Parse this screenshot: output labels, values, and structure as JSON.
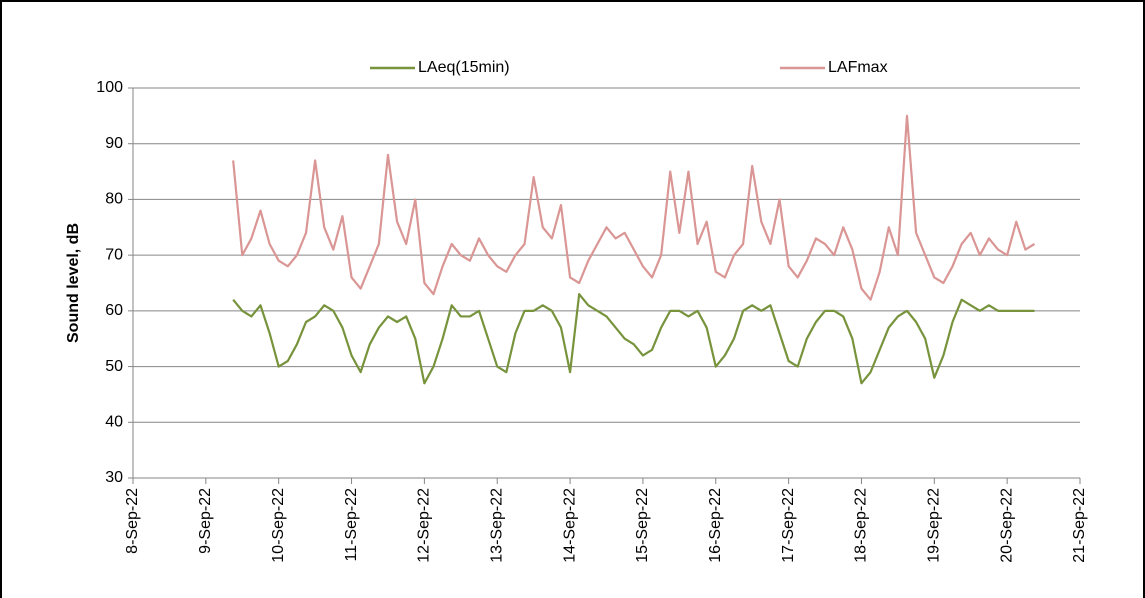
{
  "chart_data": {
    "type": "line",
    "y_label": "Sound level, dB",
    "x": [
      44813.375,
      44813.5,
      44813.625,
      44813.75,
      44813.875,
      44814,
      44814.125,
      44814.25,
      44814.375,
      44814.5,
      44814.625,
      44814.75,
      44814.875,
      44815,
      44815.125,
      44815.25,
      44815.375,
      44815.5,
      44815.625,
      44815.75,
      44815.875,
      44816,
      44816.125,
      44816.25,
      44816.375,
      44816.5,
      44816.625,
      44816.75,
      44816.875,
      44817,
      44817.125,
      44817.25,
      44817.375,
      44817.5,
      44817.625,
      44817.75,
      44817.875,
      44818,
      44818.125,
      44818.25,
      44818.375,
      44818.5,
      44818.625,
      44818.75,
      44818.875,
      44819,
      44819.125,
      44819.25,
      44819.375,
      44819.5,
      44819.625,
      44819.75,
      44819.875,
      44820,
      44820.125,
      44820.25,
      44820.375,
      44820.5,
      44820.625,
      44820.75,
      44820.875,
      44821,
      44821.125,
      44821.25,
      44821.375,
      44821.5,
      44821.625,
      44821.75,
      44821.875,
      44822,
      44822.125,
      44822.25,
      44822.375,
      44822.5,
      44822.625,
      44822.75,
      44822.875,
      44823,
      44823.125,
      44823.25,
      44823.375,
      44823.5,
      44823.625,
      44823.75,
      44823.875,
      44824,
      44824.125,
      44824.25,
      44824.375
    ],
    "series": [
      {
        "name": "LAeq(15min)",
        "color": "#77933c",
        "values": [
          62,
          60,
          59,
          61,
          56,
          50,
          51,
          54,
          58,
          59,
          61,
          60,
          57,
          52,
          49,
          54,
          57,
          59,
          58,
          59,
          55,
          47,
          50,
          55,
          61,
          59,
          59,
          60,
          55,
          50,
          49,
          56,
          60,
          60,
          61,
          60,
          57,
          49,
          63,
          61,
          60,
          59,
          57,
          55,
          54,
          52,
          53,
          57,
          60,
          60,
          59,
          60,
          57,
          50,
          52,
          55,
          60,
          61,
          60,
          61,
          56,
          51,
          50,
          55,
          58,
          60,
          60,
          59,
          55,
          47,
          49,
          53,
          57,
          59,
          60,
          58,
          55,
          48,
          52,
          58,
          62,
          61,
          60,
          61,
          60,
          60,
          60,
          60,
          60
        ]
      },
      {
        "name": "LAFmax",
        "color": "#d99694",
        "values": [
          87,
          70,
          73,
          78,
          72,
          69,
          68,
          70,
          74,
          87,
          75,
          71,
          77,
          66,
          64,
          68,
          72,
          88,
          76,
          72,
          80,
          65,
          63,
          68,
          72,
          70,
          69,
          73,
          70,
          68,
          67,
          70,
          72,
          84,
          75,
          73,
          79,
          66,
          65,
          69,
          72,
          75,
          73,
          74,
          71,
          68,
          66,
          70,
          85,
          74,
          85,
          72,
          76,
          67,
          66,
          70,
          72,
          86,
          76,
          72,
          80,
          68,
          66,
          69,
          73,
          72,
          70,
          75,
          71,
          64,
          62,
          67,
          75,
          70,
          95,
          74,
          70,
          66,
          65,
          68,
          72,
          74,
          70,
          73,
          71,
          70,
          76,
          71,
          72
        ]
      }
    ],
    "xlim": [
      44812,
      44825
    ],
    "xticks": [
      {
        "value": 44812,
        "label": "8-Sep-22"
      },
      {
        "value": 44813,
        "label": "9-Sep-22"
      },
      {
        "value": 44814,
        "label": "10-Sep-22"
      },
      {
        "value": 44815,
        "label": "11-Sep-22"
      },
      {
        "value": 44816,
        "label": "12-Sep-22"
      },
      {
        "value": 44817,
        "label": "13-Sep-22"
      },
      {
        "value": 44818,
        "label": "14-Sep-22"
      },
      {
        "value": 44819,
        "label": "15-Sep-22"
      },
      {
        "value": 44820,
        "label": "16-Sep-22"
      },
      {
        "value": 44821,
        "label": "17-Sep-22"
      },
      {
        "value": 44822,
        "label": "18-Sep-22"
      },
      {
        "value": 44823,
        "label": "19-Sep-22"
      },
      {
        "value": 44824,
        "label": "20-Sep-22"
      },
      {
        "value": 44825,
        "label": "21-Sep-22"
      }
    ],
    "ylim": [
      30,
      100
    ],
    "yticks": [
      30,
      40,
      50,
      60,
      70,
      80,
      90,
      100
    ],
    "grid": true,
    "legend": "top"
  }
}
